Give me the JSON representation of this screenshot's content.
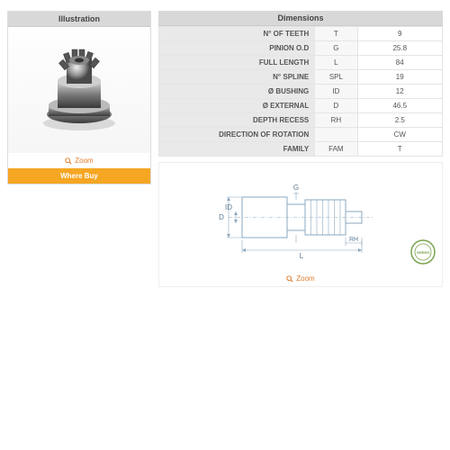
{
  "headers": {
    "illustration": "Illustration",
    "dimensions": "Dimensions"
  },
  "zoom_label": "Zoom",
  "where_buy": "Where Buy",
  "colors": {
    "header_bg": "#d8d8d8",
    "accent": "#e07b2a",
    "button_bg": "#f5a623",
    "row_label_bg": "#e9e9e9",
    "row_code_bg": "#f7f7f7",
    "border": "#e5e5e5",
    "diagram_stroke": "#8aa8c0",
    "stamp": "#7aa34d"
  },
  "dimensions_table": {
    "rows": [
      {
        "label": "N° OF TEETH",
        "code": "T",
        "value": "9"
      },
      {
        "label": "PINION O.D",
        "code": "G",
        "value": "25.8"
      },
      {
        "label": "FULL LENGTH",
        "code": "L",
        "value": "84"
      },
      {
        "label": "N° SPLINE",
        "code": "SPL",
        "value": "19"
      },
      {
        "label": "Ø BUSHING",
        "code": "ID",
        "value": "12"
      },
      {
        "label": "Ø EXTERNAL",
        "code": "D",
        "value": "46.5"
      },
      {
        "label": "DEPTH RECESS",
        "code": "RH",
        "value": "2.5"
      },
      {
        "label": "DIRECTION OF ROTATION",
        "code": "",
        "value": "CW"
      },
      {
        "label": "FAMILY",
        "code": "FAM",
        "value": "T"
      }
    ]
  },
  "diagram": {
    "labels": {
      "D": "D",
      "ID": "ID",
      "G": "G",
      "L": "L",
      "RH": "RH"
    },
    "stroke_color": "#8aa8c0",
    "text_color": "#5a7a95",
    "fontsize": 8
  }
}
